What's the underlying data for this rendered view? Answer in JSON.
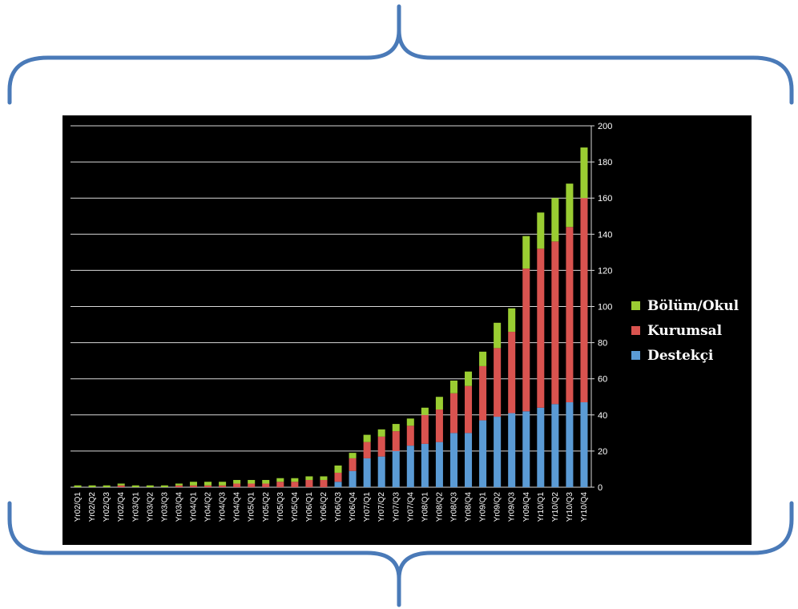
{
  "chart_data": {
    "type": "bar",
    "stacked": true,
    "categories": [
      "Yr02/Q1",
      "Yr02/Q2",
      "Yr02/Q3",
      "Yr02/Q4",
      "Yr03/Q1",
      "Yr03/Q2",
      "Yr03/Q3",
      "Yr03/Q4",
      "Yr04/Q1",
      "Yr04/Q2",
      "Yr04/Q3",
      "Yr04/Q4",
      "Yr05/Q1",
      "Yr05/Q2",
      "Yr05/Q3",
      "Yr05/Q4",
      "Yr06/Q1",
      "Yr06/Q2",
      "Yr06/Q3",
      "Yr06/Q4",
      "Yr07/Q1",
      "Yr07/Q2",
      "Yr07/Q3",
      "Yr07/Q4",
      "Yr08/Q1",
      "Yr08/Q2",
      "Yr08/Q3",
      "Yr08/Q4",
      "Yr09/Q1",
      "Yr09/Q2",
      "Yr09/Q3",
      "Yr09/Q4",
      "Yr10/Q1",
      "Yr10/Q2",
      "Yr10/Q3",
      "Yr10/Q4"
    ],
    "series": [
      {
        "name": "Destekçi",
        "color": "#5b9bd5",
        "values": [
          0,
          0,
          0,
          0,
          0,
          0,
          0,
          0,
          0,
          0,
          0,
          0,
          0,
          0,
          0,
          0,
          0,
          0,
          3,
          9,
          16,
          17,
          20,
          23,
          24,
          25,
          30,
          30,
          37,
          39,
          41,
          42,
          44,
          46,
          47,
          47
        ]
      },
      {
        "name": "Kurumsal",
        "color": "#d9534f",
        "values": [
          0,
          0,
          0,
          1,
          0,
          0,
          0,
          1,
          1,
          1,
          1,
          2,
          2,
          2,
          3,
          3,
          4,
          4,
          5,
          7,
          9,
          11,
          11,
          11,
          16,
          18,
          22,
          26,
          30,
          38,
          45,
          79,
          88,
          90,
          97,
          113
        ]
      },
      {
        "name": "Bölüm/Okul",
        "color": "#9acd32",
        "values": [
          1,
          1,
          1,
          1,
          1,
          1,
          1,
          1,
          2,
          2,
          2,
          2,
          2,
          2,
          2,
          2,
          2,
          2,
          4,
          3,
          4,
          4,
          4,
          4,
          4,
          7,
          7,
          8,
          8,
          14,
          13,
          18,
          20,
          24,
          24,
          28
        ]
      }
    ],
    "ylim": [
      0,
      200
    ],
    "yticks": [
      0,
      20,
      40,
      60,
      80,
      100,
      120,
      140,
      160,
      180,
      200
    ],
    "yaxis_position": "right",
    "grid": true,
    "legend": "right",
    "background": "#000000"
  }
}
